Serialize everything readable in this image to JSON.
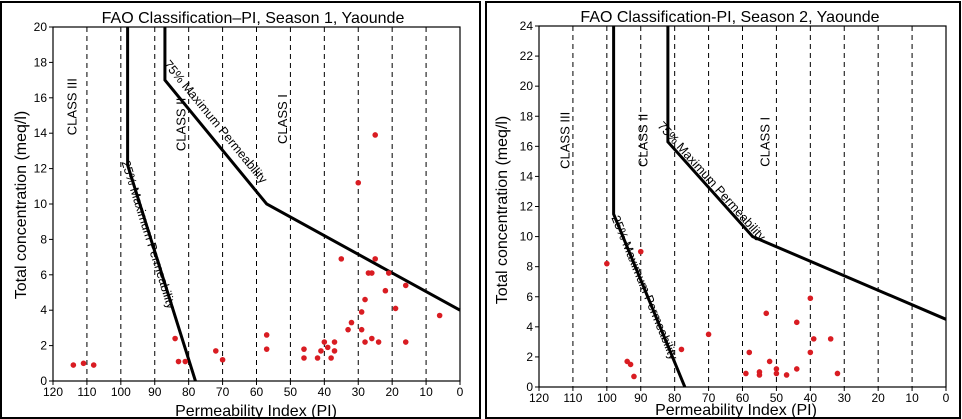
{
  "chart_data": [
    {
      "type": "scatter",
      "title": "FAO Classification–PI, Season 1, Yaounde",
      "xlabel": "Permeability Index (PI)",
      "ylabel": "Total concentration (meq/l)",
      "xlim": [
        120,
        0
      ],
      "ylim": [
        0,
        20
      ],
      "x_ticks": [
        120,
        110,
        100,
        90,
        80,
        70,
        60,
        50,
        40,
        30,
        20,
        10,
        0
      ],
      "y_ticks": [
        0,
        2,
        4,
        6,
        8,
        10,
        12,
        14,
        16,
        18,
        20
      ],
      "grid": "vertical dashed lines at x ticks",
      "boundaries": [
        {
          "label": "25% Maximum Permeability",
          "points": [
            [
              98,
              20
            ],
            [
              98,
              12.2
            ],
            [
              78,
              0
            ]
          ]
        },
        {
          "label": "75% Maximum Permeability",
          "points": [
            [
              87,
              20
            ],
            [
              87,
              17
            ],
            [
              57,
              10
            ],
            [
              0,
              4
            ]
          ]
        }
      ],
      "class_labels": [
        {
          "text": "CLASS III",
          "x": 113,
          "y": 15.5
        },
        {
          "text": "CLASS II",
          "x": 81,
          "y": 14.5
        },
        {
          "text": "CLASS I",
          "x": 51,
          "y": 14.8
        }
      ],
      "points": [
        {
          "x": 114,
          "y": 0.9
        },
        {
          "x": 111,
          "y": 1.0
        },
        {
          "x": 108,
          "y": 0.9
        },
        {
          "x": 84,
          "y": 2.4
        },
        {
          "x": 83,
          "y": 1.1
        },
        {
          "x": 81,
          "y": 1.1
        },
        {
          "x": 72,
          "y": 1.7
        },
        {
          "x": 70,
          "y": 1.2
        },
        {
          "x": 57,
          "y": 2.6
        },
        {
          "x": 57,
          "y": 1.8
        },
        {
          "x": 46,
          "y": 1.8
        },
        {
          "x": 46,
          "y": 1.3
        },
        {
          "x": 42,
          "y": 1.3
        },
        {
          "x": 41,
          "y": 1.7
        },
        {
          "x": 40,
          "y": 2.2
        },
        {
          "x": 39,
          "y": 1.9
        },
        {
          "x": 38,
          "y": 1.3
        },
        {
          "x": 37,
          "y": 1.7
        },
        {
          "x": 37,
          "y": 2.2
        },
        {
          "x": 35,
          "y": 6.9
        },
        {
          "x": 33,
          "y": 2.9
        },
        {
          "x": 32,
          "y": 3.3
        },
        {
          "x": 30,
          "y": 11.2
        },
        {
          "x": 29,
          "y": 2.9
        },
        {
          "x": 29,
          "y": 3.9
        },
        {
          "x": 28,
          "y": 2.2
        },
        {
          "x": 28,
          "y": 4.6
        },
        {
          "x": 27,
          "y": 6.1
        },
        {
          "x": 26,
          "y": 6.1
        },
        {
          "x": 26,
          "y": 2.4
        },
        {
          "x": 25,
          "y": 13.9
        },
        {
          "x": 25,
          "y": 6.9
        },
        {
          "x": 24,
          "y": 2.2
        },
        {
          "x": 22,
          "y": 5.1
        },
        {
          "x": 21,
          "y": 6.1
        },
        {
          "x": 19,
          "y": 4.1
        },
        {
          "x": 16,
          "y": 5.4
        },
        {
          "x": 16,
          "y": 2.2
        },
        {
          "x": 6,
          "y": 3.7
        }
      ]
    },
    {
      "type": "scatter",
      "title": "FAO Classification-PI, Season 2, Yaounde",
      "xlabel": "Permeability Index (PI)",
      "ylabel": "Total concentration (meq/l)",
      "xlim": [
        120,
        0
      ],
      "ylim": [
        0,
        24
      ],
      "x_ticks": [
        120,
        110,
        100,
        90,
        80,
        70,
        60,
        50,
        40,
        30,
        20,
        10,
        0
      ],
      "y_ticks": [
        0,
        2,
        4,
        6,
        8,
        10,
        12,
        14,
        16,
        18,
        20,
        22,
        24
      ],
      "grid": "vertical dashed lines at x ticks",
      "boundaries": [
        {
          "label": "25% Maximum Permeability",
          "points": [
            [
              98,
              24
            ],
            [
              98,
              11.5
            ],
            [
              77,
              0
            ]
          ]
        },
        {
          "label": "75% Maximum Permeability",
          "points": [
            [
              82,
              24
            ],
            [
              82,
              16.3
            ],
            [
              57,
              10
            ],
            [
              0,
              4.5
            ]
          ]
        }
      ],
      "class_labels": [
        {
          "text": "CLASS III",
          "x": 111,
          "y": 16.4
        },
        {
          "text": "CLASS II",
          "x": 88,
          "y": 16.4
        },
        {
          "text": "CLASS I",
          "x": 52,
          "y": 16.3
        }
      ],
      "points": [
        {
          "x": 100,
          "y": 8.2
        },
        {
          "x": 94,
          "y": 1.7
        },
        {
          "x": 93,
          "y": 1.5
        },
        {
          "x": 92,
          "y": 0.7
        },
        {
          "x": 90,
          "y": 9.0
        },
        {
          "x": 78,
          "y": 2.5
        },
        {
          "x": 70,
          "y": 3.5
        },
        {
          "x": 59,
          "y": 0.9
        },
        {
          "x": 58,
          "y": 2.3
        },
        {
          "x": 55,
          "y": 0.8
        },
        {
          "x": 55,
          "y": 1.0
        },
        {
          "x": 53,
          "y": 4.9
        },
        {
          "x": 52,
          "y": 1.7
        },
        {
          "x": 50,
          "y": 0.9
        },
        {
          "x": 50,
          "y": 1.2
        },
        {
          "x": 47,
          "y": 0.8
        },
        {
          "x": 44,
          "y": 1.2
        },
        {
          "x": 44,
          "y": 4.3
        },
        {
          "x": 40,
          "y": 2.3
        },
        {
          "x": 40,
          "y": 5.9
        },
        {
          "x": 39,
          "y": 3.2
        },
        {
          "x": 34,
          "y": 3.2
        },
        {
          "x": 32,
          "y": 0.9
        }
      ]
    }
  ]
}
